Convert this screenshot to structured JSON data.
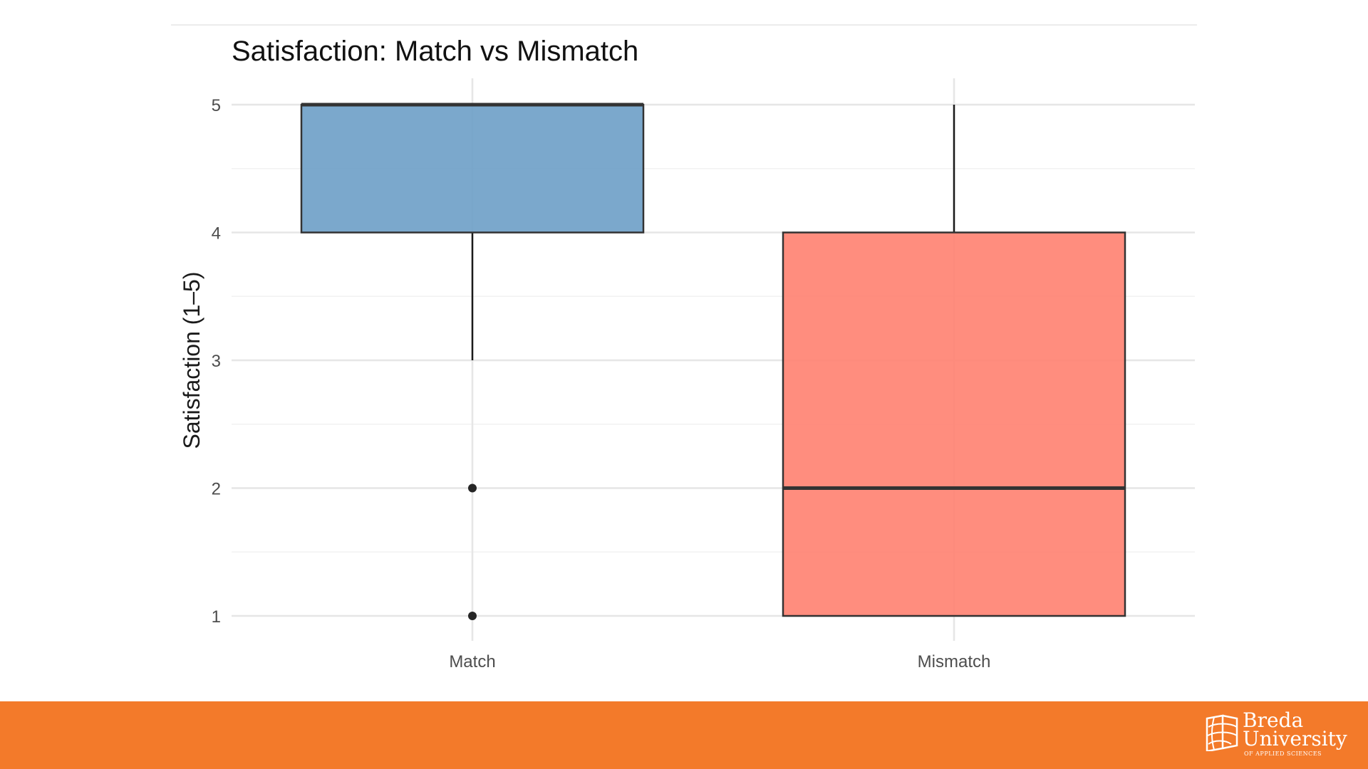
{
  "chart_data": {
    "type": "boxplot",
    "title": "Satisfaction: Match vs Mismatch",
    "xlabel": "",
    "ylabel": "Satisfaction (1–5)",
    "ylim": [
      0.9,
      5.2
    ],
    "yticks": [
      1,
      2,
      3,
      4,
      5
    ],
    "grid": true,
    "categories": [
      "Match",
      "Mismatch"
    ],
    "boxes": [
      {
        "category": "Match",
        "whisker_low": 3,
        "q1": 4,
        "median": 5,
        "q3": 5,
        "whisker_high": 5,
        "outliers": [
          2,
          1
        ],
        "color": "#6d9ec7"
      },
      {
        "category": "Mismatch",
        "whisker_low": 1,
        "q1": 1,
        "median": 2,
        "q3": 4,
        "whisker_high": 5,
        "outliers": [],
        "color": "#ff8170"
      }
    ]
  },
  "footer": {
    "bar_color": "#f37a2a",
    "logo": {
      "line1": "Breda",
      "line2": "University",
      "line3": "OF APPLIED SCIENCES"
    }
  }
}
